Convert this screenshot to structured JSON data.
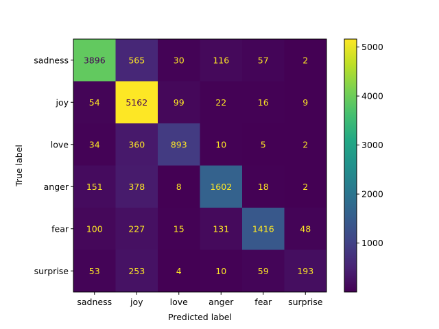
{
  "chart_data": {
    "type": "heatmap",
    "title": "",
    "xlabel": "Predicted label",
    "ylabel": "True label",
    "x_categories": [
      "sadness",
      "joy",
      "love",
      "anger",
      "fear",
      "surprise"
    ],
    "y_categories": [
      "sadness",
      "joy",
      "love",
      "anger",
      "fear",
      "surprise"
    ],
    "values": [
      [
        3896,
        565,
        30,
        116,
        57,
        2
      ],
      [
        54,
        5162,
        99,
        22,
        16,
        9
      ],
      [
        34,
        360,
        893,
        10,
        5,
        2
      ],
      [
        151,
        378,
        8,
        1602,
        18,
        2
      ],
      [
        100,
        227,
        15,
        131,
        1416,
        48
      ],
      [
        53,
        253,
        4,
        10,
        59,
        193
      ]
    ],
    "colormap": "viridis",
    "colorbar": {
      "ticks": [
        1000,
        2000,
        3000,
        4000,
        5000
      ],
      "range": [
        2,
        5162
      ]
    },
    "annotation_colors": {
      "on_dark": "#fde725",
      "on_light": "#440154"
    }
  }
}
